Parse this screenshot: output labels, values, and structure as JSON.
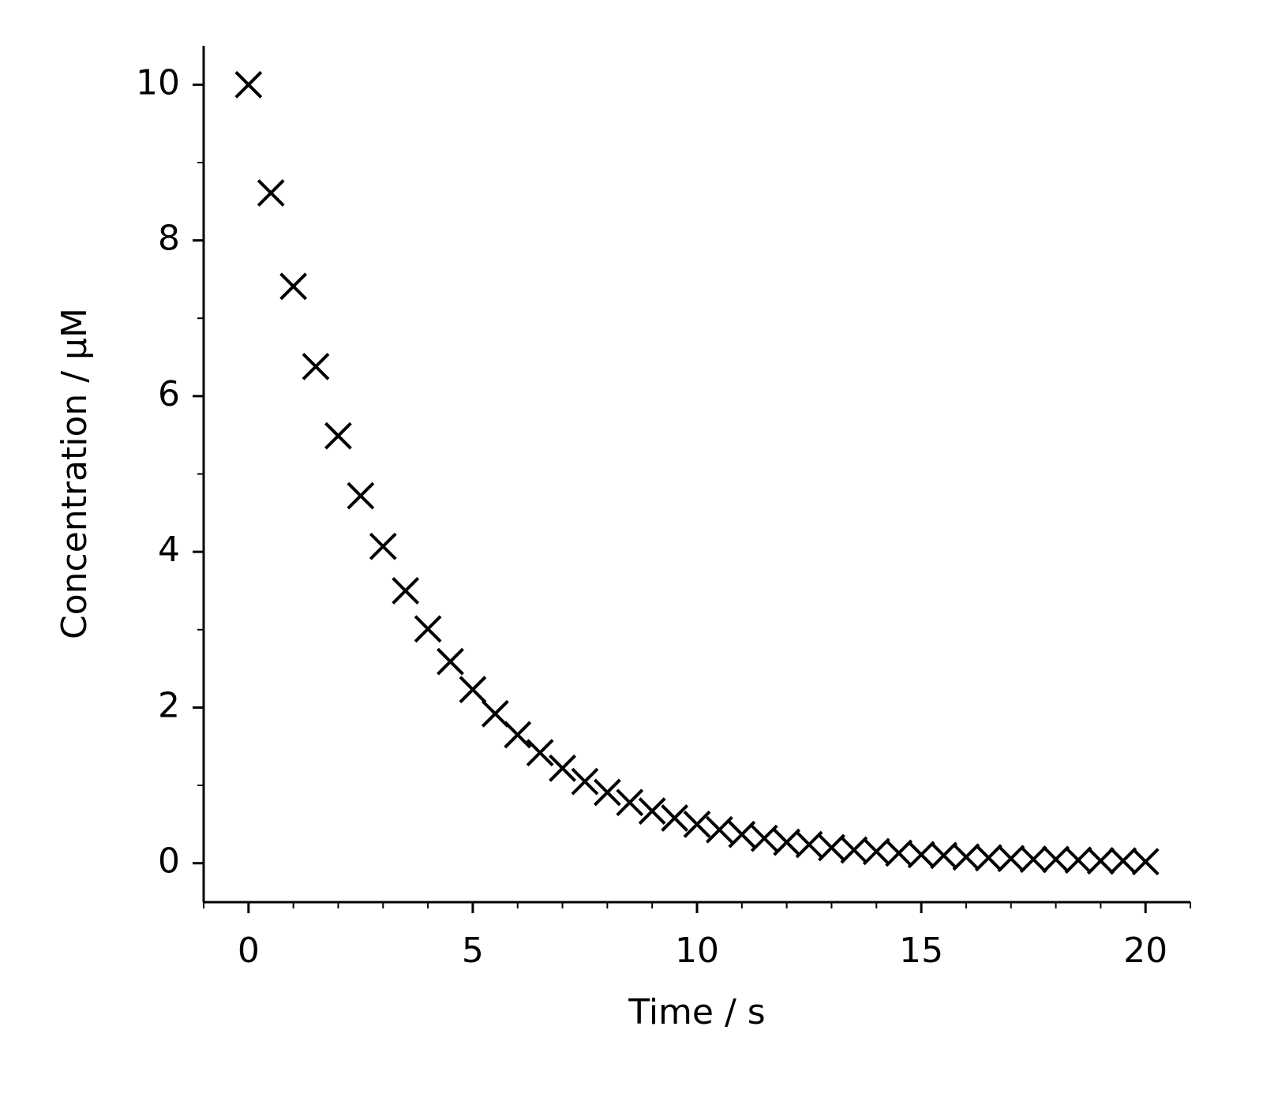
{
  "chart_data": {
    "type": "scatter",
    "xlabel": "Time / s",
    "ylabel": "Concentration / μM",
    "x": [
      0,
      0.5,
      1,
      1.5,
      2,
      2.5,
      3,
      3.5,
      4,
      4.5,
      5,
      5.5,
      6,
      6.5,
      7,
      7.5,
      8,
      8.5,
      9,
      9.5,
      10,
      10.5,
      11,
      11.5,
      12,
      12.5,
      13,
      13.5,
      14,
      14.5,
      15,
      15.5,
      16,
      16.5,
      17,
      17.5,
      18,
      18.5,
      19,
      19.5,
      20
    ],
    "values": [
      10,
      8.61,
      7.41,
      6.38,
      5.49,
      4.72,
      4.07,
      3.5,
      3.01,
      2.59,
      2.23,
      1.92,
      1.65,
      1.42,
      1.22,
      1.05,
      0.91,
      0.78,
      0.67,
      0.58,
      0.5,
      0.43,
      0.37,
      0.32,
      0.27,
      0.24,
      0.2,
      0.17,
      0.15,
      0.13,
      0.11,
      0.1,
      0.08,
      0.07,
      0.06,
      0.05,
      0.05,
      0.04,
      0.03,
      0.03,
      0.02
    ],
    "color": "#000000",
    "marker": "x",
    "xlim": [
      -1,
      21
    ],
    "ylim": [
      -0.5,
      10.5
    ],
    "xticks": [
      0,
      5,
      10,
      15,
      20
    ],
    "yticks": [
      0,
      2,
      4,
      6,
      8,
      10
    ],
    "xticks_minor": [
      -1,
      1,
      2,
      3,
      4,
      6,
      7,
      8,
      9,
      11,
      12,
      13,
      14,
      16,
      17,
      18,
      19,
      21
    ],
    "yticks_minor": [
      1,
      3,
      5,
      7,
      9
    ],
    "grid": false
  }
}
